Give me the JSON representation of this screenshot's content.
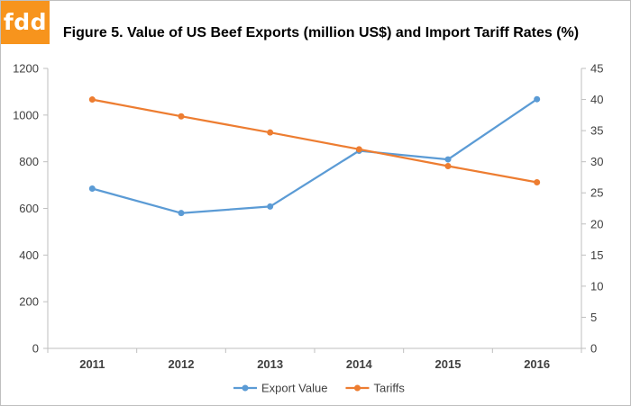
{
  "logo": {
    "text": "fdd"
  },
  "chart_data": {
    "type": "line",
    "title": "Figure 5. Value of US Beef Exports (million US$) and Import Tariff Rates (%)",
    "categories": [
      "2011",
      "2012",
      "2013",
      "2014",
      "2015",
      "2016"
    ],
    "y_left": {
      "min": 0,
      "max": 1200,
      "step": 200,
      "ticks": [
        "0",
        "200",
        "400",
        "600",
        "800",
        "1000",
        "1200"
      ]
    },
    "y_right": {
      "min": 0,
      "max": 45,
      "step": 5,
      "ticks": [
        "0",
        "5",
        "10",
        "15",
        "20",
        "25",
        "30",
        "35",
        "40",
        "45"
      ]
    },
    "series": [
      {
        "name": "Export Value",
        "axis": "left",
        "color": "#5b9bd5",
        "values": [
          685,
          580,
          608,
          847,
          810,
          1068
        ]
      },
      {
        "name": "Tariffs",
        "axis": "right",
        "color": "#ed7d31",
        "values": [
          40,
          37.3,
          34.7,
          32,
          29.3,
          26.7
        ]
      }
    ],
    "grid": false,
    "legend_position": "bottom"
  }
}
